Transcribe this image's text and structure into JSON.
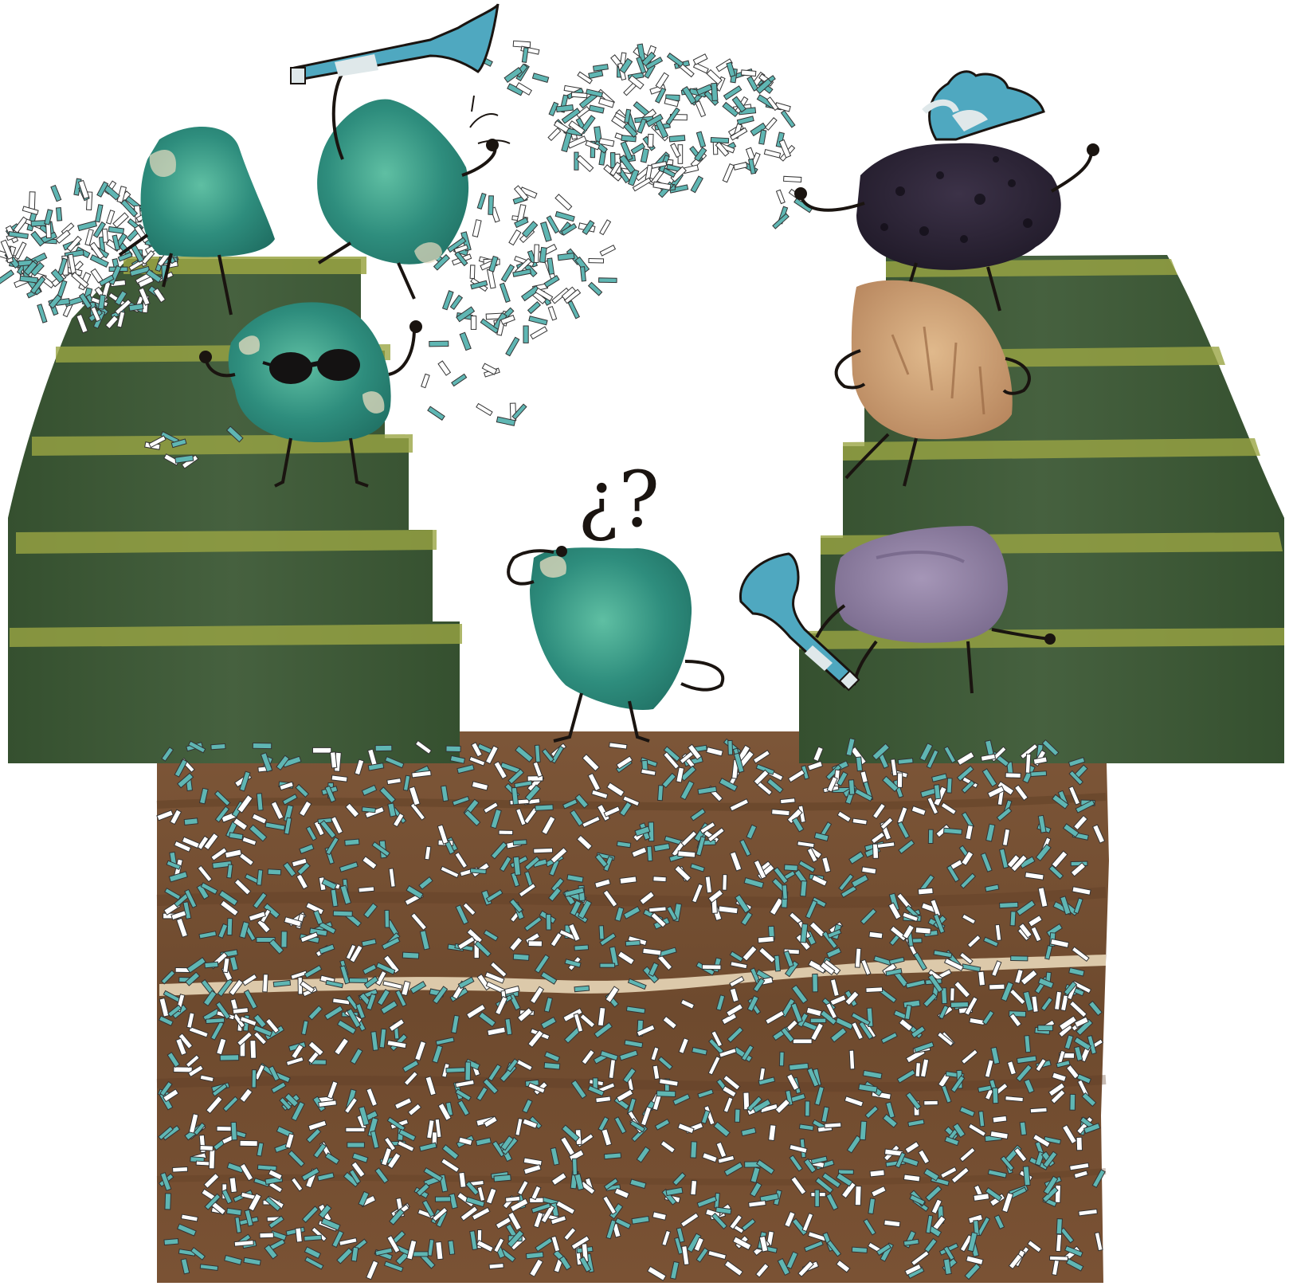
{
  "scene": {
    "question_text": "¿?",
    "colors": {
      "background": "#ffffff",
      "stand_green": "#3f5a3a",
      "stand_dark": "#2f4a2e",
      "step_stripe": "#9aa543",
      "ground": "#7a5234",
      "ground_dark": "#5e3d24",
      "vein": "#e8d7b8",
      "confetti_teal": "#5fb6b3",
      "confetti_white": "#ffffff",
      "confetti_outline": "#333333",
      "malachite": "#2f8f7f",
      "malachite_light": "#6cc0a9",
      "pumice_dark": "#2a2233",
      "sandstone": "#c89a6c",
      "amethyst": "#8a7a9e",
      "horn_blue": "#4fa8c0",
      "outline": "#1a1410"
    },
    "characters": [
      {
        "name": "malachite-rock-top-left",
        "color": "malachite"
      },
      {
        "name": "malachite-rock-horn",
        "color": "malachite",
        "prop": "horn-icon"
      },
      {
        "name": "malachite-rock-sunglasses",
        "color": "malachite",
        "prop": "sunglasses-icon"
      },
      {
        "name": "malachite-rock-confused",
        "color": "malachite"
      },
      {
        "name": "pumice-rock-party-hat",
        "color": "pumice_dark",
        "prop": "party-hat-icon"
      },
      {
        "name": "sandstone-rock",
        "color": "sandstone"
      },
      {
        "name": "amethyst-rock-horn",
        "color": "amethyst",
        "prop": "horn-icon"
      }
    ]
  }
}
